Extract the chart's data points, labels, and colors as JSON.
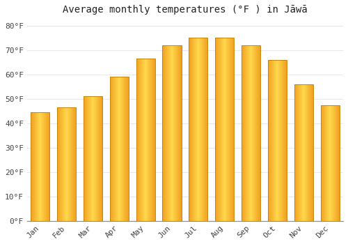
{
  "title": "Average monthly temperatures (°F ) in Jāwā",
  "months": [
    "Jan",
    "Feb",
    "Mar",
    "Apr",
    "May",
    "Jun",
    "Jul",
    "Aug",
    "Sep",
    "Oct",
    "Nov",
    "Dec"
  ],
  "temperatures": [
    44.5,
    46.5,
    51.0,
    59.0,
    66.5,
    72.0,
    75.0,
    75.0,
    72.0,
    66.0,
    56.0,
    47.5
  ],
  "bar_color_outer": "#F0A020",
  "bar_color_inner": "#FFD84D",
  "bar_border_color": "#C8850A",
  "yticks": [
    0,
    10,
    20,
    30,
    40,
    50,
    60,
    70,
    80
  ],
  "ylim": [
    0,
    83
  ],
  "background_color": "#FFFFFF",
  "grid_color": "#E8E8E8",
  "title_fontsize": 10,
  "tick_fontsize": 8,
  "font_family": "monospace"
}
